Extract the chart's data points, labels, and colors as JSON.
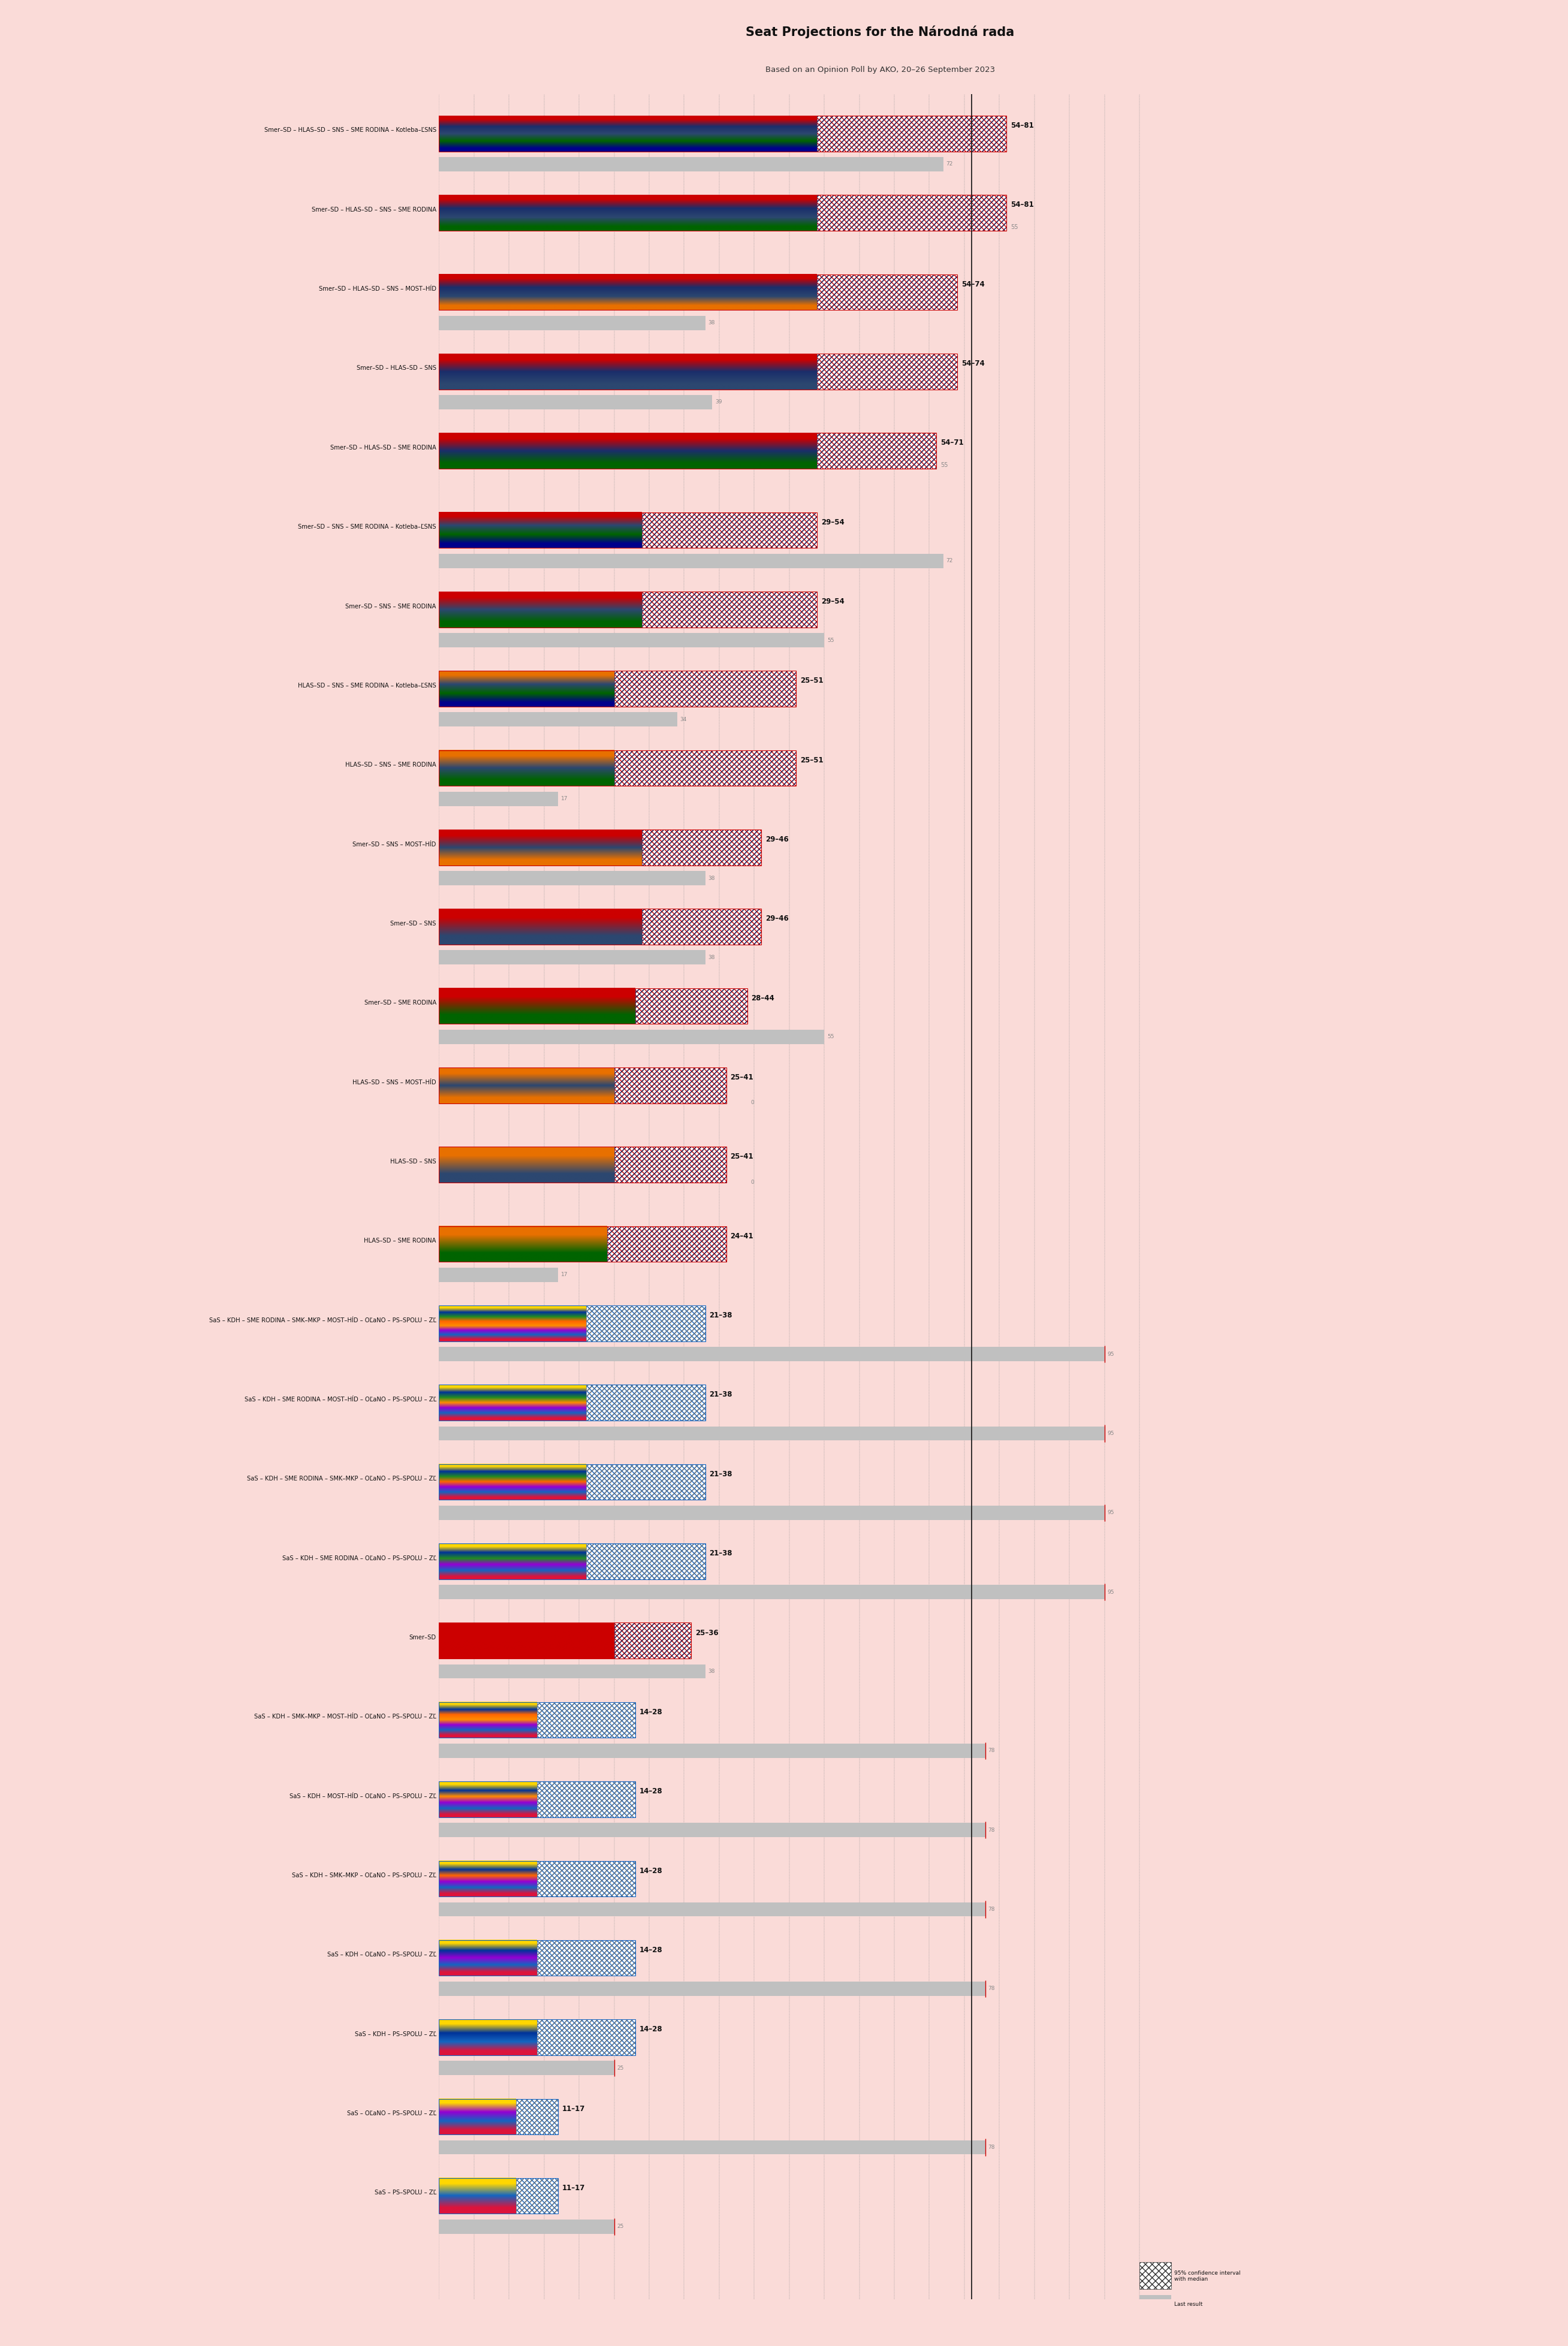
{
  "title": "Seat Projections for the Národná rada",
  "subtitle": "Based on an Opinion Poll by AKO, 20–26 September 2023",
  "background_color": "#FADBD8",
  "majority_line": 76,
  "coalitions": [
    {
      "label": "Smer–SD – HLAS–SD – SNS – SME RODINA – Kotleba–ĽSNS",
      "ci_low": 54,
      "ci_high": 81,
      "median": 72,
      "last_result": 72,
      "last_show": true,
      "colors": [
        "#CC0000",
        "#1A2E6B",
        "#2C4770",
        "#006400",
        "#00008B"
      ],
      "type": "left"
    },
    {
      "label": "Smer–SD – HLAS–SD – SNS – SME RODINA",
      "ci_low": 54,
      "ci_high": 81,
      "median": 55,
      "last_result": null,
      "last_show": false,
      "colors": [
        "#CC0000",
        "#1A2E6B",
        "#2C4770",
        "#006400"
      ],
      "type": "left"
    },
    {
      "label": "Smer–SD – HLAS–SD – SNS – MOST–HÍD",
      "ci_low": 54,
      "ci_high": 74,
      "median": 38,
      "last_result": 38,
      "last_show": true,
      "colors": [
        "#CC0000",
        "#1A2E6B",
        "#2C4770",
        "#E87000"
      ],
      "type": "left"
    },
    {
      "label": "Smer–SD – HLAS–SD – SNS",
      "ci_low": 54,
      "ci_high": 74,
      "median": 39,
      "last_result": 39,
      "last_show": true,
      "colors": [
        "#CC0000",
        "#1A2E6B",
        "#2C4770"
      ],
      "type": "left"
    },
    {
      "label": "Smer–SD – HLAS–SD – SME RODINA",
      "ci_low": 54,
      "ci_high": 71,
      "median": 55,
      "last_result": null,
      "last_show": false,
      "colors": [
        "#CC0000",
        "#1A2E6B",
        "#006400"
      ],
      "type": "left"
    },
    {
      "label": "Smer–SD – SNS – SME RODINA – Kotleba–ĽSNS",
      "ci_low": 29,
      "ci_high": 54,
      "median": 72,
      "last_result": 72,
      "last_show": true,
      "colors": [
        "#CC0000",
        "#2C4770",
        "#006400",
        "#00008B"
      ],
      "type": "left"
    },
    {
      "label": "Smer–SD – SNS – SME RODINA",
      "ci_low": 29,
      "ci_high": 54,
      "median": 55,
      "last_result": 55,
      "last_show": true,
      "colors": [
        "#CC0000",
        "#2C4770",
        "#006400"
      ],
      "type": "left"
    },
    {
      "label": "HLAS–SD – SNS – SME RODINA – Kotleba–ĽSNS",
      "ci_low": 25,
      "ci_high": 51,
      "median": 34,
      "last_result": 34,
      "last_show": true,
      "colors": [
        "#E87000",
        "#2C4770",
        "#006400",
        "#00008B"
      ],
      "type": "left"
    },
    {
      "label": "HLAS–SD – SNS – SME RODINA",
      "ci_low": 25,
      "ci_high": 51,
      "median": 17,
      "last_result": 17,
      "last_show": true,
      "colors": [
        "#E87000",
        "#2C4770",
        "#006400"
      ],
      "type": "left"
    },
    {
      "label": "Smer–SD – SNS – MOST–HÍD",
      "ci_low": 29,
      "ci_high": 46,
      "median": 38,
      "last_result": 38,
      "last_show": true,
      "colors": [
        "#CC0000",
        "#2C4770",
        "#E87000"
      ],
      "type": "left"
    },
    {
      "label": "Smer–SD – SNS",
      "ci_low": 29,
      "ci_high": 46,
      "median": 38,
      "last_result": 38,
      "last_show": true,
      "colors": [
        "#CC0000",
        "#2C4770"
      ],
      "type": "left"
    },
    {
      "label": "Smer–SD – SME RODINA",
      "ci_low": 28,
      "ci_high": 44,
      "median": 55,
      "last_result": 55,
      "last_show": true,
      "colors": [
        "#CC0000",
        "#006400"
      ],
      "type": "left"
    },
    {
      "label": "HLAS–SD – SNS – MOST–HÍD",
      "ci_low": 25,
      "ci_high": 41,
      "median": 0,
      "last_result": 0,
      "last_show": true,
      "colors": [
        "#E87000",
        "#2C4770",
        "#E87000"
      ],
      "type": "left"
    },
    {
      "label": "HLAS–SD – SNS",
      "ci_low": 25,
      "ci_high": 41,
      "median": 0,
      "last_result": 0,
      "last_show": true,
      "colors": [
        "#E87000",
        "#2C4770"
      ],
      "type": "left"
    },
    {
      "label": "HLAS–SD – SME RODINA",
      "ci_low": 24,
      "ci_high": 41,
      "median": 17,
      "last_result": 17,
      "last_show": true,
      "colors": [
        "#E87000",
        "#006400"
      ],
      "type": "left"
    },
    {
      "label": "SaS – KDH – SME RODINA – SMK–MKP – MOST–HÍD – OĽaNO – PS–SPOLU – ZĽ",
      "ci_low": 21,
      "ci_high": 38,
      "median": 95,
      "last_result": 95,
      "last_show": true,
      "colors": [
        "#FFD700",
        "#003399",
        "#228B22",
        "#FF6600",
        "#FF8C00",
        "#9400D3",
        "#1565C0",
        "#DC143C"
      ],
      "type": "right"
    },
    {
      "label": "SaS – KDH – SME RODINA – MOST–HÍD – OĽaNO – PS–SPOLU – ZĽ",
      "ci_low": 21,
      "ci_high": 38,
      "median": 95,
      "last_result": 95,
      "last_show": true,
      "colors": [
        "#FFD700",
        "#003399",
        "#228B22",
        "#FF8C00",
        "#9400D3",
        "#1565C0",
        "#DC143C"
      ],
      "type": "right"
    },
    {
      "label": "SaS – KDH – SME RODINA – SMK–MKP – OĽaNO – PS–SPOLU – ZĽ",
      "ci_low": 21,
      "ci_high": 38,
      "median": 95,
      "last_result": 95,
      "last_show": true,
      "colors": [
        "#FFD700",
        "#003399",
        "#228B22",
        "#FF6600",
        "#9400D3",
        "#1565C0",
        "#DC143C"
      ],
      "type": "right"
    },
    {
      "label": "SaS – KDH – SME RODINA – OĽaNO – PS–SPOLU – ZĽ",
      "ci_low": 21,
      "ci_high": 38,
      "median": 95,
      "last_result": 95,
      "last_show": true,
      "colors": [
        "#FFD700",
        "#003399",
        "#228B22",
        "#9400D3",
        "#1565C0",
        "#DC143C"
      ],
      "type": "right"
    },
    {
      "label": "Smer–SD",
      "ci_low": 25,
      "ci_high": 36,
      "median": 38,
      "last_result": 38,
      "last_show": true,
      "colors": [
        "#CC0000"
      ],
      "type": "left"
    },
    {
      "label": "SaS – KDH – SMK–MKP – MOST–HÍD – OĽaNO – PS–SPOLU – ZĽ",
      "ci_low": 14,
      "ci_high": 28,
      "median": 78,
      "last_result": 78,
      "last_show": true,
      "colors": [
        "#FFD700",
        "#003399",
        "#FF6600",
        "#FF8C00",
        "#9400D3",
        "#1565C0",
        "#DC143C"
      ],
      "type": "right"
    },
    {
      "label": "SaS – KDH – MOST–HÍD – OĽaNO – PS–SPOLU – ZĽ",
      "ci_low": 14,
      "ci_high": 28,
      "median": 78,
      "last_result": 78,
      "last_show": true,
      "colors": [
        "#FFD700",
        "#003399",
        "#FF8C00",
        "#9400D3",
        "#1565C0",
        "#DC143C"
      ],
      "type": "right"
    },
    {
      "label": "SaS – KDH – SMK–MKP – OĽaNO – PS–SPOLU – ZĽ",
      "ci_low": 14,
      "ci_high": 28,
      "median": 78,
      "last_result": 78,
      "last_show": true,
      "colors": [
        "#FFD700",
        "#003399",
        "#FF6600",
        "#9400D3",
        "#1565C0",
        "#DC143C"
      ],
      "type": "right"
    },
    {
      "label": "SaS – KDH – OĽaNO – PS–SPOLU – ZĽ",
      "ci_low": 14,
      "ci_high": 28,
      "median": 78,
      "last_result": 78,
      "last_show": true,
      "colors": [
        "#FFD700",
        "#003399",
        "#9400D3",
        "#1565C0",
        "#DC143C"
      ],
      "type": "right"
    },
    {
      "label": "SaS – KDH – PS–SPOLU – ZĽ",
      "ci_low": 14,
      "ci_high": 28,
      "median": 25,
      "last_result": 25,
      "last_show": true,
      "colors": [
        "#FFD700",
        "#003399",
        "#1565C0",
        "#DC143C"
      ],
      "type": "right"
    },
    {
      "label": "SaS – OĽaNO – PS–SPOLU – ZĽ",
      "ci_low": 11,
      "ci_high": 17,
      "median": 78,
      "last_result": 78,
      "last_show": true,
      "colors": [
        "#FFD700",
        "#9400D3",
        "#1565C0",
        "#DC143C"
      ],
      "type": "right"
    },
    {
      "label": "SaS – PS–SPOLU – ZĽ",
      "ci_low": 11,
      "ci_high": 17,
      "median": 25,
      "last_result": 25,
      "last_show": true,
      "colors": [
        "#FFD700",
        "#1565C0",
        "#DC143C"
      ],
      "type": "right"
    }
  ]
}
